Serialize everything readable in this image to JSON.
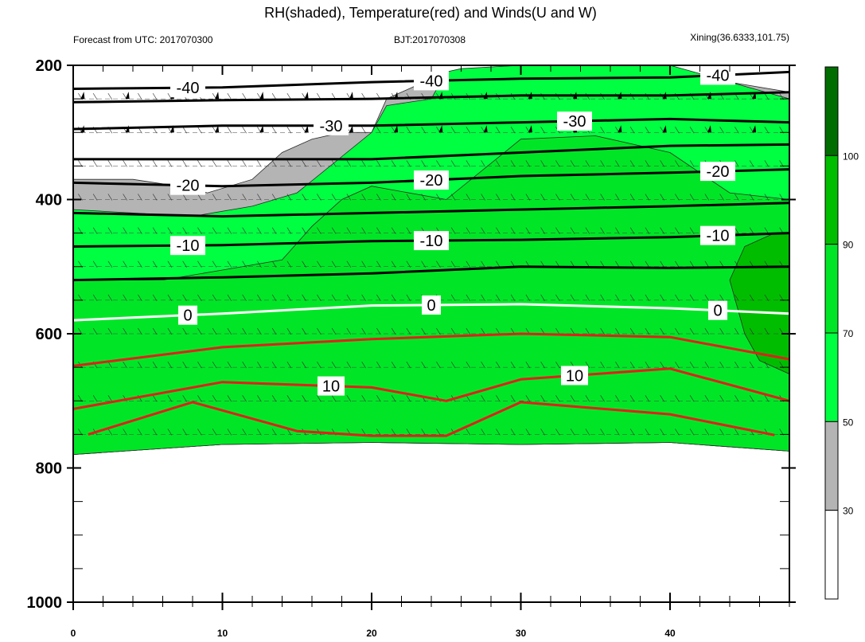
{
  "title": "RH(shaded), Temperature(red) and Winds(U and W)",
  "subtitle_left": "Forecast from UTC: 2017070300",
  "subtitle_center": "BJT:2017070308",
  "subtitle_right": "Xining(36.6333,101.75)",
  "chart_data": {
    "type": "heatmap",
    "xlim": [
      0,
      48
    ],
    "ylim": [
      200,
      1000
    ],
    "y_reversed": true,
    "x_ticks": [
      "0",
      "10",
      "20",
      "30",
      "40"
    ],
    "y_ticks": [
      "200",
      "400",
      "600",
      "800",
      "1000"
    ],
    "colorbar": {
      "levels": [
        30,
        50,
        70,
        90,
        100
      ],
      "labels": [
        "30",
        "50",
        "70",
        "90",
        "100"
      ],
      "colors": [
        "#ffffff",
        "#b4b4b4",
        "#00ff40",
        "#00e626",
        "#00bd00",
        "#006d00"
      ]
    },
    "rh_bands": [
      {
        "name": "gray_30_50",
        "color": "#b4b4b4",
        "top": [
          [
            0,
            370
          ],
          [
            4,
            370
          ],
          [
            7,
            380
          ],
          [
            9,
            390
          ],
          [
            12,
            370
          ],
          [
            14,
            330
          ],
          [
            16,
            310
          ],
          [
            18,
            300
          ],
          [
            20,
            300
          ],
          [
            21,
            250
          ],
          [
            23,
            230
          ],
          [
            25,
            225
          ],
          [
            26,
            215
          ],
          [
            30,
            210
          ],
          [
            35,
            215
          ],
          [
            40,
            215
          ],
          [
            44,
            225
          ],
          [
            48,
            240
          ]
        ]
      },
      {
        "name": "green_50_70",
        "color": "#00ff40",
        "top": [
          [
            0,
            415
          ],
          [
            4,
            420
          ],
          [
            8,
            425
          ],
          [
            12,
            410
          ],
          [
            15,
            390
          ],
          [
            20,
            300
          ],
          [
            21,
            260
          ],
          [
            24,
            250
          ],
          [
            25,
            210
          ],
          [
            26,
            205
          ],
          [
            30,
            200
          ],
          [
            40,
            200
          ],
          [
            48,
            250
          ]
        ]
      },
      {
        "name": "green_70_90",
        "color": "#00e626",
        "top": [
          [
            0,
            520
          ],
          [
            6,
            520
          ],
          [
            10,
            505
          ],
          [
            14,
            490
          ],
          [
            16,
            440
          ],
          [
            18,
            400
          ],
          [
            20,
            380
          ],
          [
            25,
            400
          ],
          [
            30,
            310
          ],
          [
            35,
            305
          ],
          [
            40,
            330
          ],
          [
            44,
            390
          ],
          [
            48,
            400
          ]
        ]
      },
      {
        "name": "green_90_100",
        "color": "#00bd00",
        "top": [
          [
            45,
            470
          ],
          [
            47,
            450
          ],
          [
            48,
            450
          ]
        ]
      }
    ],
    "lower_gray_base": [
      [
        0,
        780
      ],
      [
        10,
        765
      ],
      [
        20,
        762
      ],
      [
        30,
        765
      ],
      [
        40,
        762
      ],
      [
        48,
        775
      ]
    ],
    "temperature_contours": [
      {
        "level": -40,
        "color": "#000000",
        "labels": [
          "-40",
          "-40",
          "-40"
        ],
        "points": [
          [
            0,
            235
          ],
          [
            10,
            233
          ],
          [
            20,
            225
          ],
          [
            30,
            220
          ],
          [
            40,
            218
          ],
          [
            48,
            210
          ]
        ]
      },
      {
        "level": -35,
        "color": "#000000",
        "labels": [],
        "points": [
          [
            0,
            255
          ],
          [
            10,
            252
          ],
          [
            20,
            250
          ],
          [
            30,
            245
          ],
          [
            40,
            245
          ],
          [
            48,
            240
          ]
        ]
      },
      {
        "level": -30,
        "color": "#000000",
        "labels": [
          "-30",
          "-30"
        ],
        "points": [
          [
            0,
            295
          ],
          [
            10,
            290
          ],
          [
            20,
            290
          ],
          [
            30,
            285
          ],
          [
            40,
            280
          ],
          [
            48,
            285
          ]
        ]
      },
      {
        "level": -25,
        "color": "#000000",
        "labels": [],
        "points": [
          [
            0,
            340
          ],
          [
            10,
            340
          ],
          [
            20,
            340
          ],
          [
            30,
            330
          ],
          [
            40,
            320
          ],
          [
            48,
            318
          ]
        ]
      },
      {
        "level": -20,
        "color": "#000000",
        "labels": [
          "-20",
          "-20",
          "-20"
        ],
        "points": [
          [
            0,
            375
          ],
          [
            10,
            380
          ],
          [
            20,
            375
          ],
          [
            30,
            365
          ],
          [
            40,
            360
          ],
          [
            48,
            355
          ]
        ]
      },
      {
        "level": -15,
        "color": "#000000",
        "labels": [],
        "points": [
          [
            0,
            420
          ],
          [
            10,
            425
          ],
          [
            20,
            420
          ],
          [
            30,
            415
          ],
          [
            40,
            410
          ],
          [
            48,
            405
          ]
        ]
      },
      {
        "level": -10,
        "color": "#000000",
        "labels": [
          "-10",
          "-10",
          "-10"
        ],
        "points": [
          [
            0,
            470
          ],
          [
            10,
            468
          ],
          [
            20,
            462
          ],
          [
            30,
            460
          ],
          [
            40,
            456
          ],
          [
            48,
            450
          ]
        ]
      },
      {
        "level": -5,
        "color": "#000000",
        "labels": [],
        "points": [
          [
            0,
            520
          ],
          [
            10,
            516
          ],
          [
            20,
            510
          ],
          [
            30,
            500
          ],
          [
            40,
            502
          ],
          [
            48,
            500
          ]
        ]
      },
      {
        "level": 0,
        "color": "#ffffff",
        "labels": [
          "0",
          "0",
          "0"
        ],
        "points": [
          [
            0,
            580
          ],
          [
            10,
            570
          ],
          [
            20,
            558
          ],
          [
            30,
            556
          ],
          [
            40,
            562
          ],
          [
            48,
            570
          ]
        ]
      },
      {
        "level": 5,
        "color": "#e0201c",
        "labels": [],
        "points": [
          [
            0,
            648
          ],
          [
            10,
            620
          ],
          [
            20,
            608
          ],
          [
            30,
            600
          ],
          [
            40,
            605
          ],
          [
            48,
            638
          ]
        ]
      },
      {
        "level": 10,
        "color": "#e0201c",
        "labels": [
          "10",
          "10"
        ],
        "points": [
          [
            0,
            712
          ],
          [
            10,
            672
          ],
          [
            20,
            680
          ],
          [
            25,
            700
          ],
          [
            30,
            668
          ],
          [
            40,
            652
          ],
          [
            48,
            700
          ]
        ]
      },
      {
        "level": 15,
        "color": "#e0201c",
        "labels": [],
        "points": [
          [
            1,
            750
          ],
          [
            8,
            702
          ],
          [
            15,
            745
          ],
          [
            20,
            752
          ],
          [
            25,
            752
          ],
          [
            30,
            702
          ],
          [
            40,
            720
          ],
          [
            47,
            751
          ]
        ]
      }
    ]
  }
}
